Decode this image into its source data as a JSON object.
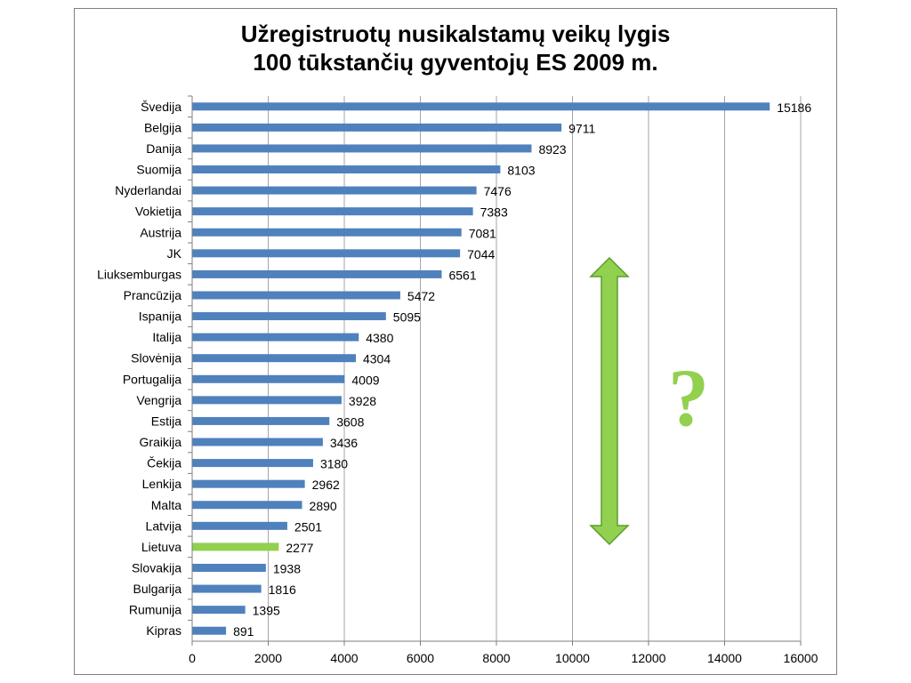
{
  "chart_data": {
    "type": "bar",
    "orientation": "horizontal",
    "title_lines": [
      "Užregistruotų nusikalstamų veikų lygis",
      "100 tūkstančių gyventojų ES 2009 m."
    ],
    "categories": [
      "Švedija",
      "Belgija",
      "Danija",
      "Suomija",
      "Nyderlandai",
      "Vokietija",
      "Austrija",
      "JK",
      "Liuksemburgas",
      "Prancūzija",
      "Ispanija",
      "Italija",
      "Slovėnija",
      "Portugalija",
      "Vengrija",
      "Estija",
      "Graikija",
      "Čekija",
      "Lenkija",
      "Malta",
      "Latvija",
      "Lietuva",
      "Slovakija",
      "Bulgarija",
      "Rumunija",
      "Kipras"
    ],
    "values": [
      15186,
      9711,
      8923,
      8103,
      7476,
      7383,
      7081,
      7044,
      6561,
      5472,
      5095,
      4380,
      4304,
      4009,
      3928,
      3608,
      3436,
      3180,
      2962,
      2890,
      2501,
      2277,
      1938,
      1816,
      1395,
      891
    ],
    "highlight_category": "Lietuva",
    "xlim": [
      0,
      16000
    ],
    "xticks": [
      0,
      2000,
      4000,
      6000,
      8000,
      10000,
      12000,
      14000,
      16000
    ],
    "grid": true,
    "colors": {
      "bar": "#4f81bd",
      "highlight": "#92d050",
      "grid": "#a6a6a6",
      "arrow": "#92d050",
      "arrow_stroke": "#5a9e2f"
    },
    "annotation": {
      "symbol": "?",
      "arrow_icon": "double-vertical-arrow-icon"
    }
  }
}
